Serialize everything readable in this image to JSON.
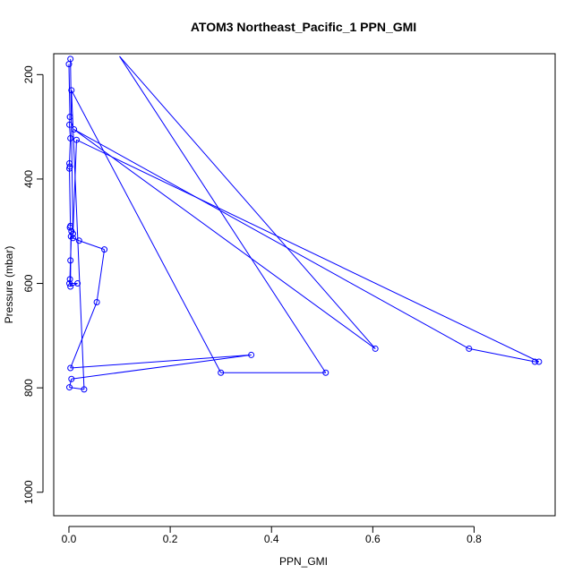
{
  "chart_data": {
    "type": "line",
    "title": "ATOM3 Northeast_Pacific_1 PPN_GMI",
    "xlabel": "PPN_GMI",
    "ylabel": "Pressure (mbar)",
    "xlim": [
      -0.03,
      0.96
    ],
    "ylim": [
      1045,
      160
    ],
    "y_reversed": true,
    "x_ticks": [
      0.0,
      0.2,
      0.4,
      0.6,
      0.8
    ],
    "x_tick_labels": [
      "0.0",
      "0.2",
      "0.4",
      "0.6",
      "0.8"
    ],
    "y_ticks": [
      200,
      400,
      600,
      800,
      1000
    ],
    "y_tick_labels": [
      "200",
      "400",
      "600",
      "800",
      "1000"
    ],
    "grid": false,
    "series_color": "#0000ff",
    "series": [
      {
        "points": [
          [
            0.0,
            180
          ],
          [
            0.002,
            281
          ],
          [
            0.001,
            296
          ],
          [
            0.003,
            322
          ],
          [
            0.001,
            370
          ],
          [
            0.002,
            376
          ],
          [
            0.001,
            380
          ],
          [
            0.003,
            490
          ],
          [
            0.002,
            493
          ],
          [
            0.005,
            500
          ],
          [
            0.003,
            556
          ],
          [
            0.002,
            592
          ],
          [
            0.001,
            600
          ],
          [
            0.017,
            600
          ],
          [
            0.003,
            606
          ],
          [
            0.004,
            510
          ],
          [
            0.008,
            513
          ],
          [
            0.02,
            518
          ],
          [
            0.07,
            535
          ],
          [
            0.055,
            636
          ],
          [
            0.003,
            762
          ],
          [
            0.36,
            737
          ],
          [
            0.005,
            783
          ],
          [
            0.001,
            799
          ],
          [
            0.03,
            803
          ],
          [
            0.005,
            230
          ],
          [
            0.3,
            771
          ],
          [
            0.507,
            771
          ],
          [
            0.1,
            165
          ],
          [
            0.605,
            725
          ],
          [
            0.01,
            305
          ],
          [
            0.79,
            725
          ],
          [
            0.92,
            750
          ],
          [
            0.928,
            750
          ],
          [
            0.015,
            325
          ],
          [
            0.008,
            505
          ],
          [
            0.003,
            170
          ]
        ]
      }
    ]
  }
}
